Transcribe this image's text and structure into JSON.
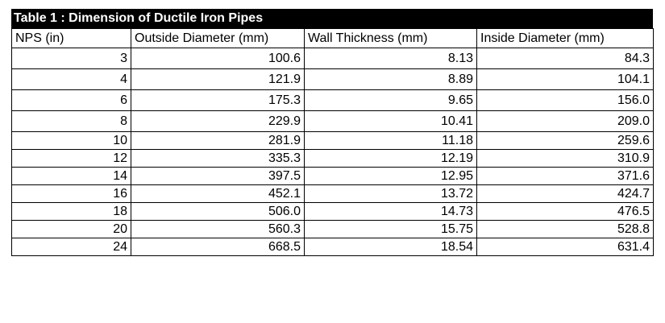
{
  "table": {
    "title": "Table 1 : Dimension of Ductile Iron Pipes",
    "headers": [
      "NPS (in)",
      "Outside Diameter (mm)",
      "Wall Thickness (mm)",
      "Inside Diameter (mm)"
    ],
    "rows": [
      [
        "3",
        "100.6",
        "8.13",
        "84.3"
      ],
      [
        "4",
        "121.9",
        "8.89",
        "104.1"
      ],
      [
        "6",
        "175.3",
        "9.65",
        "156.0"
      ],
      [
        "8",
        "229.9",
        "10.41",
        "209.0"
      ],
      [
        "10",
        "281.9",
        "11.18",
        "259.6"
      ],
      [
        "12",
        "335.3",
        "12.19",
        "310.9"
      ],
      [
        "14",
        "397.5",
        "12.95",
        "371.6"
      ],
      [
        "16",
        "452.1",
        "13.72",
        "424.7"
      ],
      [
        "18",
        "506.0",
        "14.73",
        "476.5"
      ],
      [
        "20",
        "560.3",
        "15.75",
        "528.8"
      ],
      [
        "24",
        "668.5",
        "18.54",
        "631.4"
      ]
    ]
  }
}
